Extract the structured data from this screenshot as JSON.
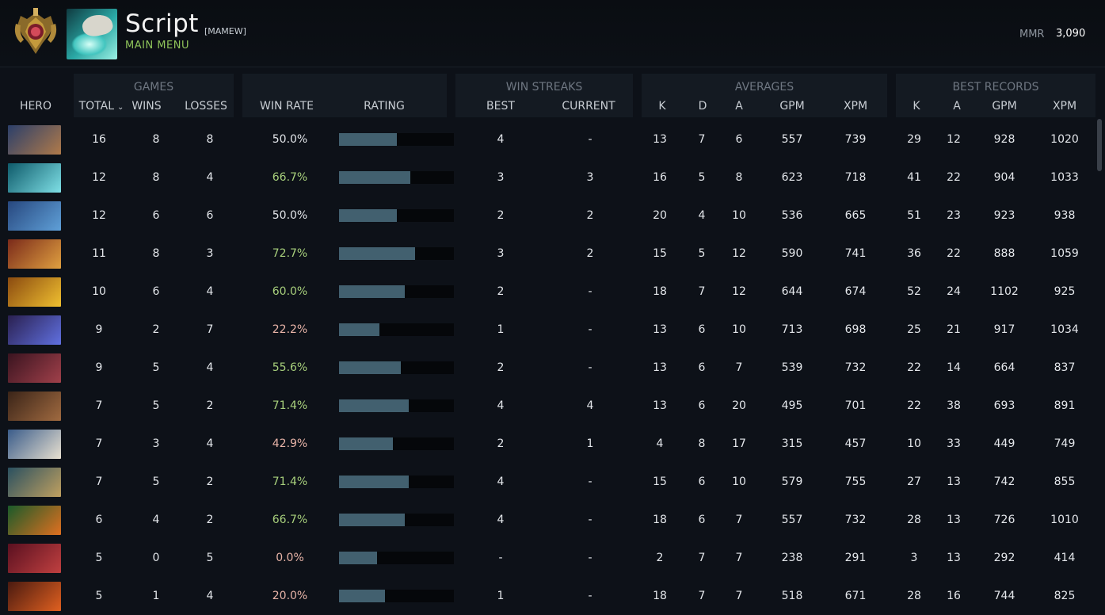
{
  "header": {
    "player_name": "Script",
    "player_tag": "[MAMEW]",
    "menu_link": "MAIN MENU",
    "mmr_label": "MMR",
    "mmr_value": "3,090"
  },
  "groups": {
    "games": "GAMES",
    "win_streaks": "WIN STREAKS",
    "averages": "AVERAGES",
    "best_records": "BEST RECORDS"
  },
  "columns": {
    "hero": "HERO",
    "total": "TOTAL",
    "wins": "WINS",
    "losses": "LOSSES",
    "win_rate": "WIN RATE",
    "rating": "RATING",
    "best": "BEST",
    "current": "CURRENT",
    "avg_k": "K",
    "avg_d": "D",
    "avg_a": "A",
    "avg_gpm": "GPM",
    "avg_xpm": "XPM",
    "best_k": "K",
    "best_a": "A",
    "best_gpm": "GPM",
    "best_xpm": "XPM"
  },
  "rows": [
    {
      "hero_icon": "hooded-hero-portrait",
      "total": "16",
      "wins": "8",
      "losses": "8",
      "win_rate": "50.0%",
      "rating": 0.5,
      "best": "4",
      "current": "-",
      "k": "13",
      "d": "7",
      "a": "6",
      "gpm": "557",
      "xpm": "739",
      "bk": "29",
      "ba": "12",
      "bgpm": "928",
      "bxpm": "1020"
    },
    {
      "hero_icon": "water-hero-portrait",
      "total": "12",
      "wins": "8",
      "losses": "4",
      "win_rate": "66.7%",
      "rating": 0.62,
      "best": "3",
      "current": "3",
      "k": "16",
      "d": "5",
      "a": "8",
      "gpm": "623",
      "xpm": "718",
      "bk": "41",
      "ba": "22",
      "bgpm": "904",
      "bxpm": "1033"
    },
    {
      "hero_icon": "blue-hero-portrait",
      "total": "12",
      "wins": "6",
      "losses": "6",
      "win_rate": "50.0%",
      "rating": 0.5,
      "best": "2",
      "current": "2",
      "k": "20",
      "d": "4",
      "a": "10",
      "gpm": "536",
      "xpm": "665",
      "bk": "51",
      "ba": "23",
      "bgpm": "923",
      "bxpm": "938"
    },
    {
      "hero_icon": "red-armor-hero-portrait",
      "total": "11",
      "wins": "8",
      "losses": "3",
      "win_rate": "72.7%",
      "rating": 0.66,
      "best": "3",
      "current": "2",
      "k": "15",
      "d": "5",
      "a": "12",
      "gpm": "590",
      "xpm": "741",
      "bk": "36",
      "ba": "22",
      "bgpm": "888",
      "bxpm": "1059"
    },
    {
      "hero_icon": "golden-hero-portrait",
      "total": "10",
      "wins": "6",
      "losses": "4",
      "win_rate": "60.0%",
      "rating": 0.57,
      "best": "2",
      "current": "-",
      "k": "18",
      "d": "7",
      "a": "12",
      "gpm": "644",
      "xpm": "674",
      "bk": "52",
      "ba": "24",
      "bgpm": "1102",
      "bxpm": "925"
    },
    {
      "hero_icon": "void-orb-hero-portrait",
      "total": "9",
      "wins": "2",
      "losses": "7",
      "win_rate": "22.2%",
      "rating": 0.35,
      "best": "1",
      "current": "-",
      "k": "13",
      "d": "6",
      "a": "10",
      "gpm": "713",
      "xpm": "698",
      "bk": "25",
      "ba": "21",
      "bgpm": "917",
      "bxpm": "1034"
    },
    {
      "hero_icon": "spider-hero-portrait",
      "total": "9",
      "wins": "5",
      "losses": "4",
      "win_rate": "55.6%",
      "rating": 0.54,
      "best": "2",
      "current": "-",
      "k": "13",
      "d": "6",
      "a": "7",
      "gpm": "539",
      "xpm": "732",
      "bk": "22",
      "ba": "14",
      "bgpm": "664",
      "bxpm": "837"
    },
    {
      "hero_icon": "monkey-hero-portrait",
      "total": "7",
      "wins": "5",
      "losses": "2",
      "win_rate": "71.4%",
      "rating": 0.61,
      "best": "4",
      "current": "4",
      "k": "13",
      "d": "6",
      "a": "20",
      "gpm": "495",
      "xpm": "701",
      "bk": "22",
      "ba": "38",
      "bgpm": "693",
      "bxpm": "891"
    },
    {
      "hero_icon": "ice-maiden-hero-portrait",
      "total": "7",
      "wins": "3",
      "losses": "4",
      "win_rate": "42.9%",
      "rating": 0.47,
      "best": "2",
      "current": "1",
      "k": "4",
      "d": "8",
      "a": "17",
      "gpm": "315",
      "xpm": "457",
      "bk": "10",
      "ba": "33",
      "bgpm": "449",
      "bxpm": "749"
    },
    {
      "hero_icon": "witch-doctor-hero-portrait",
      "total": "7",
      "wins": "5",
      "losses": "2",
      "win_rate": "71.4%",
      "rating": 0.61,
      "best": "4",
      "current": "-",
      "k": "15",
      "d": "6",
      "a": "10",
      "gpm": "579",
      "xpm": "755",
      "bk": "27",
      "ba": "13",
      "bgpm": "742",
      "bxpm": "855"
    },
    {
      "hero_icon": "goblin-hero-portrait",
      "total": "6",
      "wins": "4",
      "losses": "2",
      "win_rate": "66.7%",
      "rating": 0.57,
      "best": "4",
      "current": "-",
      "k": "18",
      "d": "6",
      "a": "7",
      "gpm": "557",
      "xpm": "732",
      "bk": "28",
      "ba": "13",
      "bgpm": "726",
      "bxpm": "1010"
    },
    {
      "hero_icon": "demon-hero-portrait",
      "total": "5",
      "wins": "0",
      "losses": "5",
      "win_rate": "0.0%",
      "rating": 0.33,
      "best": "-",
      "current": "-",
      "k": "2",
      "d": "7",
      "a": "7",
      "gpm": "238",
      "xpm": "291",
      "bk": "3",
      "ba": "13",
      "bgpm": "292",
      "bxpm": "414"
    },
    {
      "hero_icon": "fire-hero-portrait",
      "total": "5",
      "wins": "1",
      "losses": "4",
      "win_rate": "20.0%",
      "rating": 0.4,
      "best": "1",
      "current": "-",
      "k": "18",
      "d": "7",
      "a": "7",
      "gpm": "518",
      "xpm": "671",
      "bk": "28",
      "ba": "16",
      "bgpm": "744",
      "bxpm": "825"
    }
  ]
}
